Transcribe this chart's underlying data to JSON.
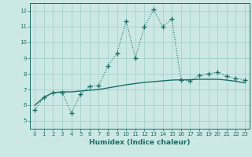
{
  "xlabel": "Humidex (Indice chaleur)",
  "background_color": "#cce8e5",
  "grid_color": "#aad4d0",
  "line_color": "#1a6e64",
  "xlim": [
    -0.5,
    23.5
  ],
  "ylim": [
    4.5,
    12.5
  ],
  "xticks": [
    0,
    1,
    2,
    3,
    4,
    5,
    6,
    7,
    8,
    9,
    10,
    11,
    12,
    13,
    14,
    15,
    16,
    17,
    18,
    19,
    20,
    21,
    22,
    23
  ],
  "yticks": [
    5,
    6,
    7,
    8,
    9,
    10,
    11,
    12
  ],
  "curve1_x": [
    0,
    1,
    2,
    3,
    4,
    5,
    6,
    7,
    8,
    9,
    10,
    11,
    12,
    13,
    14,
    15,
    16,
    17,
    18,
    19,
    20,
    21,
    22,
    23
  ],
  "curve1_y": [
    5.7,
    6.5,
    6.8,
    6.8,
    5.5,
    6.7,
    7.2,
    7.25,
    8.5,
    9.3,
    11.35,
    9.0,
    11.0,
    12.1,
    11.0,
    11.5,
    7.6,
    7.55,
    7.9,
    8.0,
    8.1,
    7.85,
    7.7,
    7.6
  ],
  "curve2_x": [
    0,
    1,
    2,
    3,
    4,
    5,
    6,
    7,
    8,
    9,
    10,
    11,
    12,
    13,
    14,
    15,
    16,
    17,
    18,
    19,
    20,
    21,
    22,
    23
  ],
  "curve2_y": [
    6.0,
    6.5,
    6.8,
    6.85,
    6.85,
    6.9,
    6.95,
    7.0,
    7.1,
    7.2,
    7.3,
    7.38,
    7.45,
    7.5,
    7.55,
    7.6,
    7.62,
    7.62,
    7.65,
    7.65,
    7.65,
    7.6,
    7.52,
    7.42
  ]
}
